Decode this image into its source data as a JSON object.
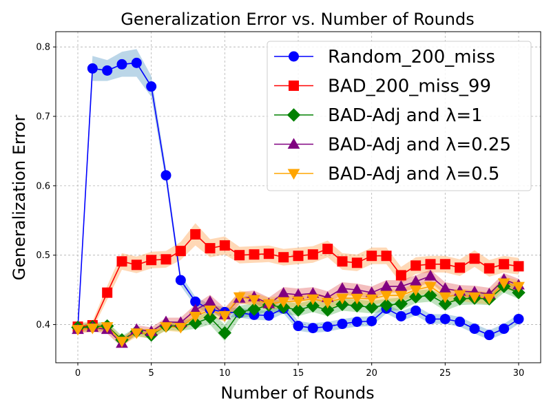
{
  "chart_data": {
    "type": "line",
    "title": "Generalization Error vs. Number of Rounds",
    "xlabel": "Number of Rounds",
    "ylabel": "Generalization Error",
    "xlim": [
      -1.5,
      31.5
    ],
    "ylim": [
      0.345,
      0.822
    ],
    "xticks": [
      0,
      5,
      10,
      15,
      20,
      25,
      30
    ],
    "yticks": [
      0.4,
      0.5,
      0.6,
      0.7,
      0.8
    ],
    "xtick_labels": [
      "0",
      "5",
      "10",
      "15",
      "20",
      "25",
      "30"
    ],
    "ytick_labels": [
      "0.4",
      "0.5",
      "0.6",
      "0.7",
      "0.8"
    ],
    "grid": true,
    "legend_position": "top-right",
    "x": [
      0,
      1,
      2,
      3,
      4,
      5,
      6,
      7,
      8,
      9,
      10,
      11,
      12,
      13,
      14,
      15,
      16,
      17,
      18,
      19,
      20,
      21,
      22,
      23,
      24,
      25,
      26,
      27,
      28,
      29,
      30
    ],
    "series": [
      {
        "name": "Random_200_miss",
        "color": "#0000ff",
        "band_color": "#1f77b4",
        "marker": "circle",
        "values": [
          0.395,
          0.769,
          0.766,
          0.775,
          0.777,
          0.743,
          0.615,
          0.464,
          0.433,
          0.422,
          0.418,
          0.417,
          0.414,
          0.413,
          0.423,
          0.398,
          0.395,
          0.397,
          0.401,
          0.404,
          0.405,
          0.423,
          0.412,
          0.42,
          0.408,
          0.408,
          0.404,
          0.394,
          0.385,
          0.394,
          0.408
        ],
        "spread": [
          0.003,
          0.018,
          0.015,
          0.018,
          0.02,
          0.015,
          0.01,
          0.008,
          0.007,
          0.007,
          0.007,
          0.007,
          0.007,
          0.007,
          0.007,
          0.007,
          0.007,
          0.007,
          0.007,
          0.007,
          0.007,
          0.007,
          0.007,
          0.007,
          0.007,
          0.007,
          0.007,
          0.007,
          0.007,
          0.007,
          0.007
        ]
      },
      {
        "name": "BAD_200_miss_99",
        "color": "#ff0000",
        "band_color": "#ff7f0e",
        "marker": "square",
        "values": [
          0.397,
          0.399,
          0.446,
          0.491,
          0.486,
          0.493,
          0.494,
          0.506,
          0.53,
          0.51,
          0.514,
          0.5,
          0.501,
          0.502,
          0.497,
          0.499,
          0.501,
          0.509,
          0.491,
          0.489,
          0.499,
          0.499,
          0.471,
          0.485,
          0.487,
          0.487,
          0.482,
          0.495,
          0.481,
          0.487,
          0.484
        ],
        "spread": [
          0.005,
          0.006,
          0.01,
          0.012,
          0.012,
          0.012,
          0.012,
          0.013,
          0.016,
          0.013,
          0.013,
          0.012,
          0.012,
          0.012,
          0.012,
          0.012,
          0.012,
          0.012,
          0.012,
          0.012,
          0.012,
          0.012,
          0.012,
          0.012,
          0.012,
          0.012,
          0.012,
          0.012,
          0.012,
          0.012,
          0.012
        ]
      },
      {
        "name": "BAD-Adj and λ=1",
        "color": "#008000",
        "band_color": "#2ca02c",
        "marker": "diamond",
        "values": [
          0.396,
          0.397,
          0.398,
          0.378,
          0.39,
          0.385,
          0.398,
          0.398,
          0.402,
          0.41,
          0.388,
          0.418,
          0.422,
          0.428,
          0.425,
          0.421,
          0.427,
          0.421,
          0.429,
          0.427,
          0.425,
          0.428,
          0.43,
          0.44,
          0.442,
          0.43,
          0.437,
          0.438,
          0.437,
          0.455,
          0.446
        ],
        "spread": [
          0.005,
          0.006,
          0.006,
          0.006,
          0.006,
          0.006,
          0.006,
          0.007,
          0.008,
          0.01,
          0.012,
          0.009,
          0.009,
          0.009,
          0.009,
          0.009,
          0.009,
          0.009,
          0.009,
          0.009,
          0.009,
          0.009,
          0.009,
          0.009,
          0.009,
          0.01,
          0.009,
          0.009,
          0.009,
          0.009,
          0.009
        ]
      },
      {
        "name": "BAD-Adj and λ=0.25",
        "color": "#800080",
        "band_color": "#d62728",
        "marker": "triangle-up",
        "values": [
          0.393,
          0.396,
          0.393,
          0.373,
          0.393,
          0.39,
          0.404,
          0.403,
          0.421,
          0.433,
          0.414,
          0.438,
          0.44,
          0.43,
          0.445,
          0.443,
          0.445,
          0.439,
          0.452,
          0.45,
          0.446,
          0.455,
          0.455,
          0.462,
          0.47,
          0.452,
          0.448,
          0.447,
          0.444,
          0.465,
          0.457
        ],
        "spread": [
          0.005,
          0.006,
          0.006,
          0.006,
          0.006,
          0.006,
          0.006,
          0.007,
          0.008,
          0.01,
          0.01,
          0.009,
          0.009,
          0.009,
          0.009,
          0.009,
          0.009,
          0.009,
          0.009,
          0.009,
          0.009,
          0.009,
          0.009,
          0.009,
          0.009,
          0.009,
          0.009,
          0.009,
          0.009,
          0.009,
          0.009
        ]
      },
      {
        "name": "BAD-Adj and λ=0.5",
        "color": "#ffa500",
        "band_color": "#ffa500",
        "marker": "triangle-down",
        "values": [
          0.393,
          0.395,
          0.397,
          0.376,
          0.388,
          0.387,
          0.397,
          0.396,
          0.412,
          0.421,
          0.413,
          0.44,
          0.436,
          0.43,
          0.433,
          0.434,
          0.437,
          0.432,
          0.438,
          0.438,
          0.437,
          0.442,
          0.442,
          0.45,
          0.455,
          0.44,
          0.443,
          0.44,
          0.438,
          0.46,
          0.455
        ],
        "spread": [
          0.005,
          0.006,
          0.006,
          0.006,
          0.006,
          0.006,
          0.006,
          0.007,
          0.008,
          0.009,
          0.009,
          0.009,
          0.009,
          0.009,
          0.009,
          0.009,
          0.009,
          0.009,
          0.009,
          0.009,
          0.009,
          0.009,
          0.009,
          0.009,
          0.009,
          0.009,
          0.009,
          0.009,
          0.009,
          0.009,
          0.009
        ]
      }
    ]
  }
}
